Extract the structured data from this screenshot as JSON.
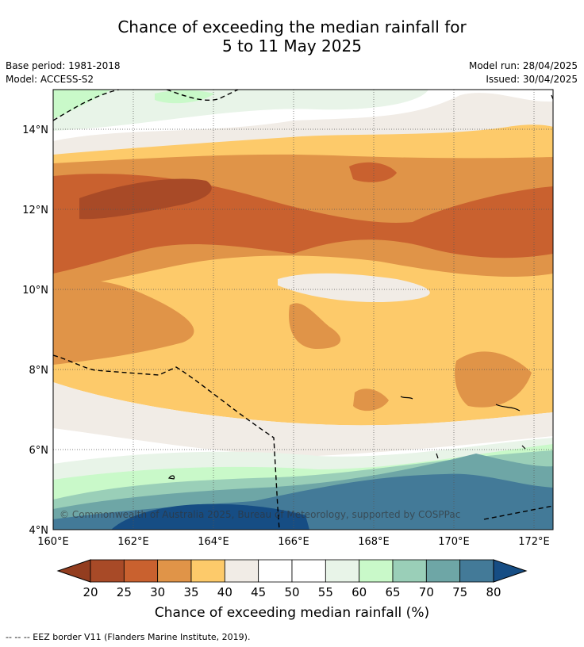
{
  "title": {
    "line1": "Chance of exceeding the median rainfall for",
    "line2": "5 to 11 May 2025"
  },
  "meta": {
    "base_period": "Base period: 1981-2018",
    "model": "Model: ACCESS-S2",
    "model_run": "Model run: 28/04/2025",
    "issued": "Issued: 30/04/2025"
  },
  "map": {
    "lon_labels": [
      "160°E",
      "162°E",
      "164°E",
      "166°E",
      "168°E",
      "170°E",
      "172°E"
    ],
    "lat_labels": [
      "14°N",
      "12°N",
      "10°N",
      "8°N",
      "6°N",
      "4°N"
    ],
    "copyright": "© Commonwealth of Australia 2025, Bureau of Meteorology, supported by COSPPac"
  },
  "colorbar": {
    "labels": [
      "20",
      "25",
      "30",
      "35",
      "40",
      "45",
      "50",
      "55",
      "60",
      "65",
      "70",
      "75",
      "80"
    ],
    "colors": [
      "#a84a27",
      "#c9612f",
      "#e09448",
      "#fdca6a",
      "#f1ece6",
      "#ffffff",
      "#ffffff",
      "#e8f4e8",
      "#c9f9c9",
      "#9acfb8",
      "#6ea6a6",
      "#437a98"
    ],
    "under_color": "#933d1f",
    "over_color": "#164d84",
    "title": "Chance of exceeding median rainfall (%)"
  },
  "footnote": "--  --  -- EEZ border V11 (Flanders Marine Institute, 2019)."
}
